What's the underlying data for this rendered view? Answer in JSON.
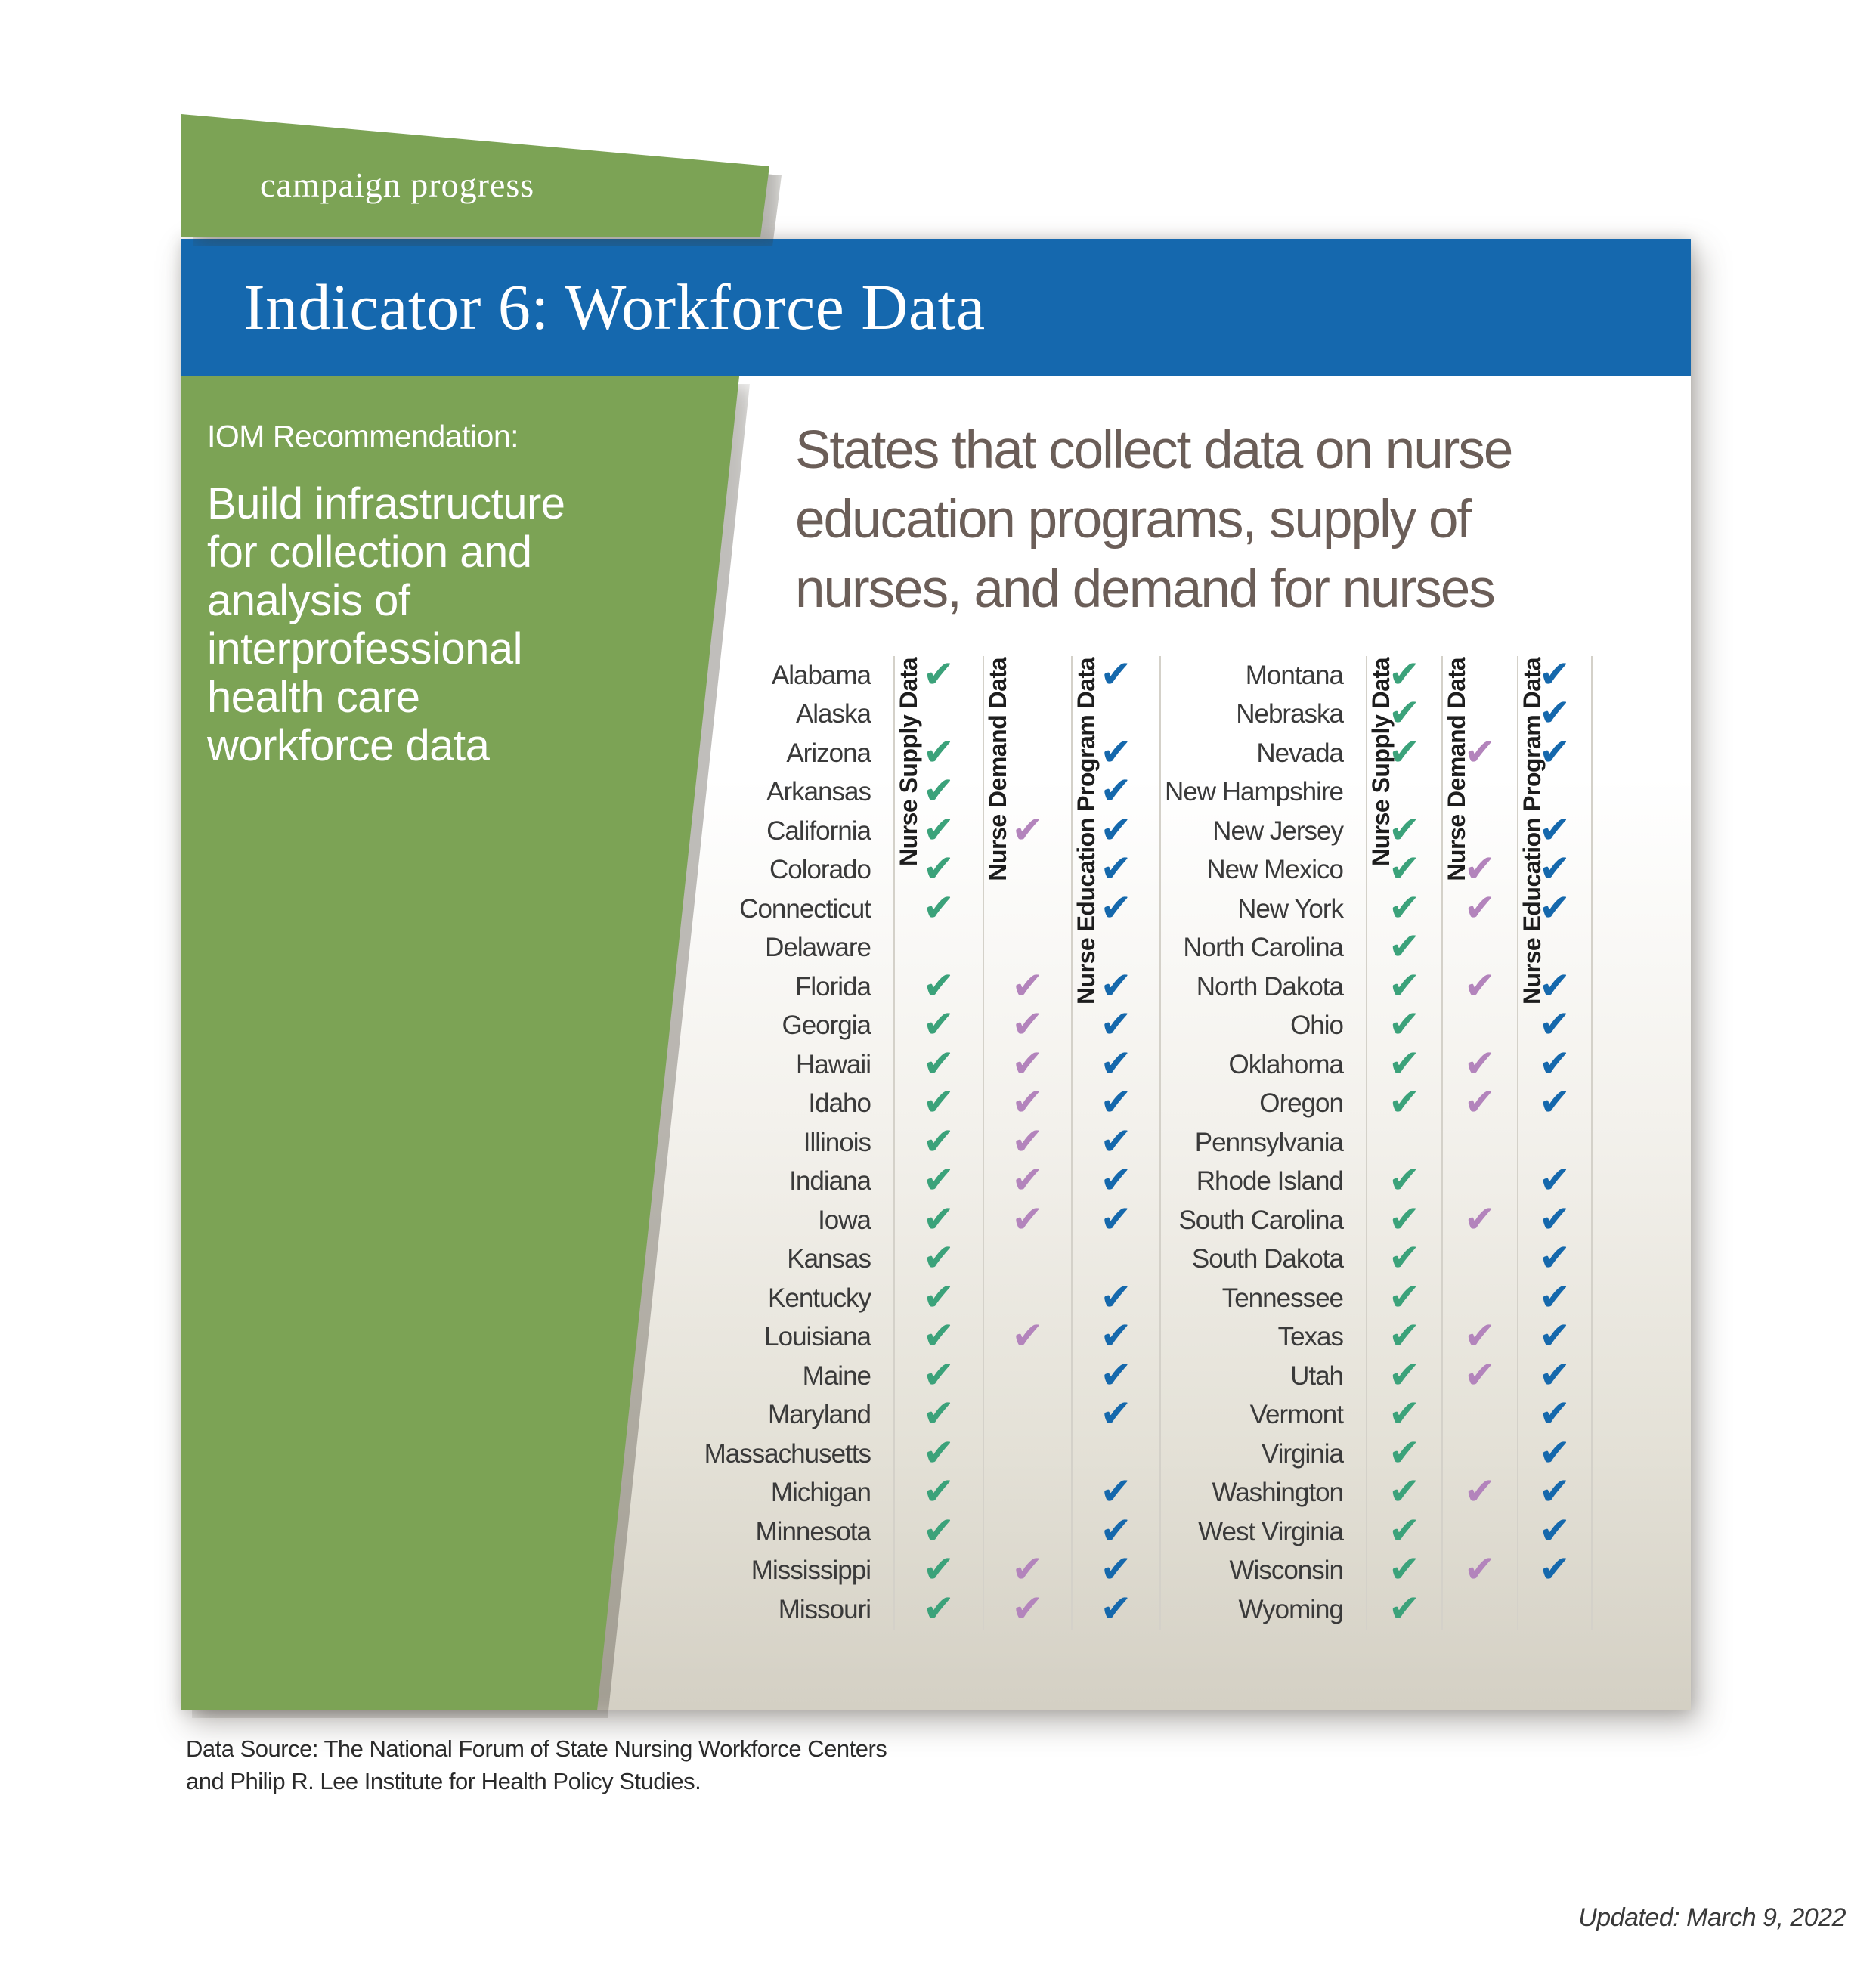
{
  "banner": {
    "label": "campaign progress"
  },
  "title_bar": {
    "text": "Indicator 6: Workforce Data"
  },
  "sidebar": {
    "kicker": "IOM Recommendation:",
    "recommendation_lines": [
      "Build infrastructure",
      "for collection and",
      "analysis of",
      "interprofessional",
      "health care",
      "workforce data"
    ]
  },
  "chart_data": {
    "type": "table",
    "title": "States that collect data on nurse education programs, supply of nurses, and demand for nurses",
    "title_lines": [
      "States that collect data on nurse",
      "education programs, supply of",
      "nurses, and demand for nurses"
    ],
    "column_headers": [
      "Nurse Supply Data",
      "Nurse Demand Data",
      "Nurse Education Program Data"
    ],
    "check_glyph": "✔",
    "left_states": [
      {
        "name": "Alabama",
        "supply": true,
        "demand": false,
        "education": true
      },
      {
        "name": "Alaska",
        "supply": false,
        "demand": false,
        "education": false
      },
      {
        "name": "Arizona",
        "supply": true,
        "demand": false,
        "education": true
      },
      {
        "name": "Arkansas",
        "supply": true,
        "demand": false,
        "education": true
      },
      {
        "name": "California",
        "supply": true,
        "demand": true,
        "education": true
      },
      {
        "name": "Colorado",
        "supply": true,
        "demand": false,
        "education": true
      },
      {
        "name": "Connecticut",
        "supply": true,
        "demand": false,
        "education": true
      },
      {
        "name": "Delaware",
        "supply": false,
        "demand": false,
        "education": false
      },
      {
        "name": "Florida",
        "supply": true,
        "demand": true,
        "education": true
      },
      {
        "name": "Georgia",
        "supply": true,
        "demand": true,
        "education": true
      },
      {
        "name": "Hawaii",
        "supply": true,
        "demand": true,
        "education": true
      },
      {
        "name": "Idaho",
        "supply": true,
        "demand": true,
        "education": true
      },
      {
        "name": "Illinois",
        "supply": true,
        "demand": true,
        "education": true
      },
      {
        "name": "Indiana",
        "supply": true,
        "demand": true,
        "education": true
      },
      {
        "name": "Iowa",
        "supply": true,
        "demand": true,
        "education": true
      },
      {
        "name": "Kansas",
        "supply": true,
        "demand": false,
        "education": false
      },
      {
        "name": "Kentucky",
        "supply": true,
        "demand": false,
        "education": true
      },
      {
        "name": "Louisiana",
        "supply": true,
        "demand": true,
        "education": true
      },
      {
        "name": "Maine",
        "supply": true,
        "demand": false,
        "education": true
      },
      {
        "name": "Maryland",
        "supply": true,
        "demand": false,
        "education": true
      },
      {
        "name": "Massachusetts",
        "supply": true,
        "demand": false,
        "education": false
      },
      {
        "name": "Michigan",
        "supply": true,
        "demand": false,
        "education": true
      },
      {
        "name": "Minnesota",
        "supply": true,
        "demand": false,
        "education": true
      },
      {
        "name": "Mississippi",
        "supply": true,
        "demand": true,
        "education": true
      },
      {
        "name": "Missouri",
        "supply": true,
        "demand": true,
        "education": true
      }
    ],
    "right_states": [
      {
        "name": "Montana",
        "supply": true,
        "demand": false,
        "education": true
      },
      {
        "name": "Nebraska",
        "supply": true,
        "demand": false,
        "education": true
      },
      {
        "name": "Nevada",
        "supply": true,
        "demand": true,
        "education": true
      },
      {
        "name": "New Hampshire",
        "supply": false,
        "demand": false,
        "education": false
      },
      {
        "name": "New Jersey",
        "supply": true,
        "demand": false,
        "education": true
      },
      {
        "name": "New Mexico",
        "supply": true,
        "demand": true,
        "education": true
      },
      {
        "name": "New York",
        "supply": true,
        "demand": true,
        "education": true
      },
      {
        "name": "North Carolina",
        "supply": true,
        "demand": false,
        "education": false
      },
      {
        "name": "North Dakota",
        "supply": true,
        "demand": true,
        "education": true
      },
      {
        "name": "Ohio",
        "supply": true,
        "demand": false,
        "education": true
      },
      {
        "name": "Oklahoma",
        "supply": true,
        "demand": true,
        "education": true
      },
      {
        "name": "Oregon",
        "supply": true,
        "demand": true,
        "education": true
      },
      {
        "name": "Pennsylvania",
        "supply": false,
        "demand": false,
        "education": false
      },
      {
        "name": "Rhode Island",
        "supply": true,
        "demand": false,
        "education": true
      },
      {
        "name": "South Carolina",
        "supply": true,
        "demand": true,
        "education": true
      },
      {
        "name": "South Dakota",
        "supply": true,
        "demand": false,
        "education": true
      },
      {
        "name": "Tennessee",
        "supply": true,
        "demand": false,
        "education": true
      },
      {
        "name": "Texas",
        "supply": true,
        "demand": true,
        "education": true
      },
      {
        "name": "Utah",
        "supply": true,
        "demand": true,
        "education": true
      },
      {
        "name": "Vermont",
        "supply": true,
        "demand": false,
        "education": true
      },
      {
        "name": "Virginia",
        "supply": true,
        "demand": false,
        "education": true
      },
      {
        "name": "Washington",
        "supply": true,
        "demand": true,
        "education": true
      },
      {
        "name": "West Virginia",
        "supply": true,
        "demand": false,
        "education": true
      },
      {
        "name": "Wisconsin",
        "supply": true,
        "demand": true,
        "education": true
      },
      {
        "name": "Wyoming",
        "supply": true,
        "demand": false,
        "education": false
      }
    ]
  },
  "footer": {
    "data_source_lines": [
      "Data Source: The National Forum of State Nursing Workforce Centers",
      "and Philip R. Lee Institute for Health Policy Studies."
    ],
    "updated": "Updated: March 9, 2022"
  },
  "colors": {
    "banner_green": "#7CA355",
    "title_bar_blue": "#1568AE",
    "supply_check_green": "#3BA27A",
    "demand_check_purple": "#B384BC",
    "education_check_blue": "#1568AC",
    "card_bottom_beige": "#D5D1C5",
    "title_text": "#6B5E58"
  }
}
